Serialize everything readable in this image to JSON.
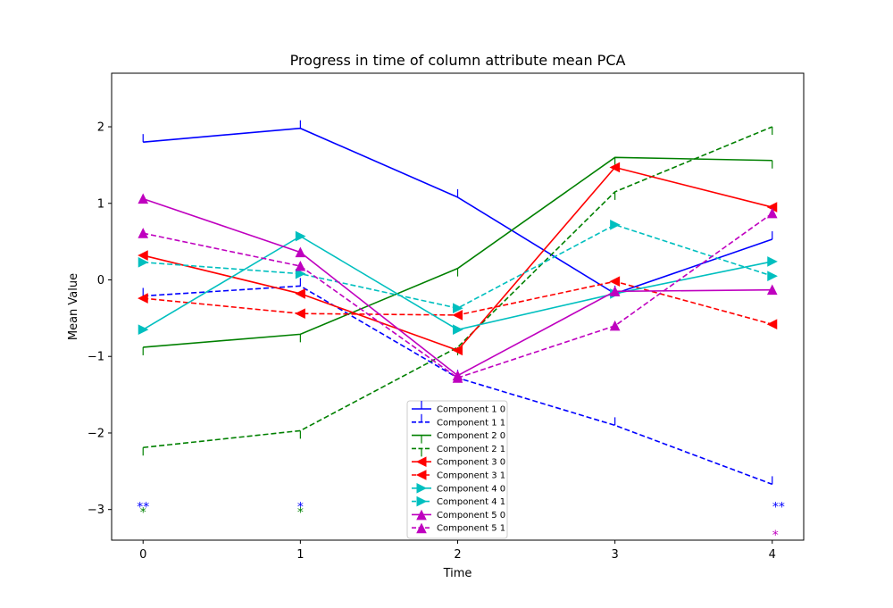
{
  "chart_data": {
    "type": "line",
    "title": "Progress in time of column attribute mean PCA",
    "xlabel": "Time",
    "ylabel": "Mean Value",
    "x": [
      0,
      1,
      2,
      3,
      4
    ],
    "xlim": [
      -0.2,
      4.2
    ],
    "ylim": [
      -3.4,
      2.7
    ],
    "xticks": [
      "0",
      "1",
      "2",
      "3",
      "4"
    ],
    "yticks": [
      -3,
      -2,
      -1,
      0,
      1,
      2
    ],
    "ytick_labels": [
      "−3",
      "−2",
      "−1",
      "0",
      "1",
      "2"
    ],
    "grid": false,
    "legend_position": "lower-center",
    "series": [
      {
        "name": "Component 1 0",
        "color": "#0000ff",
        "dash": "solid",
        "marker": "tick-up",
        "values": [
          1.8,
          1.98,
          1.08,
          -0.18,
          0.53
        ]
      },
      {
        "name": "Component 1 1",
        "color": "#0000ff",
        "dash": "dashed",
        "marker": "tick-up",
        "values": [
          -0.21,
          -0.08,
          -1.28,
          -1.9,
          -2.67
        ]
      },
      {
        "name": "Component 2 0",
        "color": "#008000",
        "dash": "solid",
        "marker": "tick-down",
        "values": [
          -0.88,
          -0.71,
          0.15,
          1.6,
          1.56
        ]
      },
      {
        "name": "Component 2 1",
        "color": "#008000",
        "dash": "dashed",
        "marker": "tick-down",
        "values": [
          -2.19,
          -1.97,
          -0.88,
          1.15,
          2.0
        ]
      },
      {
        "name": "Component 3 0",
        "color": "#ff0000",
        "dash": "solid",
        "marker": "triangle-left",
        "values": [
          0.32,
          -0.18,
          -0.92,
          1.47,
          0.95
        ]
      },
      {
        "name": "Component 3 1",
        "color": "#ff0000",
        "dash": "dashed",
        "marker": "triangle-left",
        "values": [
          -0.24,
          -0.44,
          -0.46,
          -0.02,
          -0.58
        ]
      },
      {
        "name": "Component 4 0",
        "color": "#00bfbf",
        "dash": "solid",
        "marker": "triangle-right",
        "values": [
          -0.65,
          0.57,
          -0.65,
          -0.18,
          0.24
        ]
      },
      {
        "name": "Component 4 1",
        "color": "#00bfbf",
        "dash": "dashed",
        "marker": "triangle-right",
        "values": [
          0.23,
          0.08,
          -0.37,
          0.72,
          0.05
        ]
      },
      {
        "name": "Component 5 0",
        "color": "#bf00bf",
        "dash": "solid",
        "marker": "triangle-up",
        "values": [
          1.06,
          0.36,
          -1.25,
          -0.15,
          -0.13
        ]
      },
      {
        "name": "Component 5 1",
        "color": "#bf00bf",
        "dash": "dashed",
        "marker": "triangle-up",
        "values": [
          0.61,
          0.18,
          -1.28,
          -0.6,
          0.87
        ]
      }
    ],
    "annotations": [
      {
        "x": 0,
        "y": -2.95,
        "text": "**",
        "color": "#0000ff"
      },
      {
        "x": 0,
        "y": -3.02,
        "text": "*",
        "color": "#008000"
      },
      {
        "x": 1,
        "y": -2.95,
        "text": "*",
        "color": "#0000ff"
      },
      {
        "x": 1,
        "y": -3.02,
        "text": "*",
        "color": "#008000"
      },
      {
        "x": 4.04,
        "y": -2.95,
        "text": "**",
        "color": "#0000ff"
      },
      {
        "x": 4.02,
        "y": -3.32,
        "text": "*",
        "color": "#bf00bf"
      }
    ]
  }
}
